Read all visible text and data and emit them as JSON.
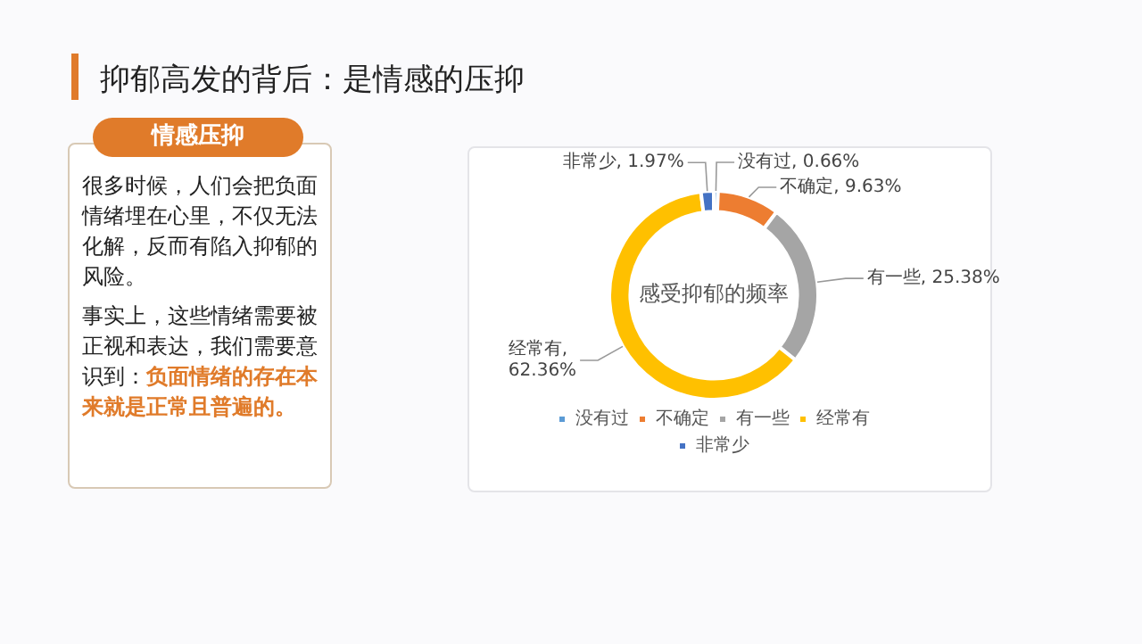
{
  "chart_data": {
    "type": "donut",
    "title": "抑郁高发的背后：是情感的压抑",
    "subtitle": "感受抑郁的频率",
    "categories": [
      "没有过",
      "不确定",
      "有一些",
      "经常有",
      "非常少"
    ],
    "values": [
      0.66,
      9.63,
      25.38,
      62.36,
      1.97
    ],
    "colors": [
      "#5b9bd5",
      "#ed7d31",
      "#a5a5a5",
      "#ffc000",
      "#4472c4"
    ],
    "value_labels": [
      "没有过, 0.66%",
      "不确定, 9.63%",
      "有一些, 25.38%",
      "经常有, 62.36%",
      "非常少, 1.97%"
    ],
    "legend": "bottom",
    "annotations": [
      "情感压抑",
      "很多时候，人们会把负面情绪埋在心里，不仅无法化解，反而有陷入抑郁的风险。",
      "事实上，这些情绪需要被正视和表达，我们需要意识到：",
      "负面情绪的存在本来就是正常且普遍的。"
    ]
  }
}
